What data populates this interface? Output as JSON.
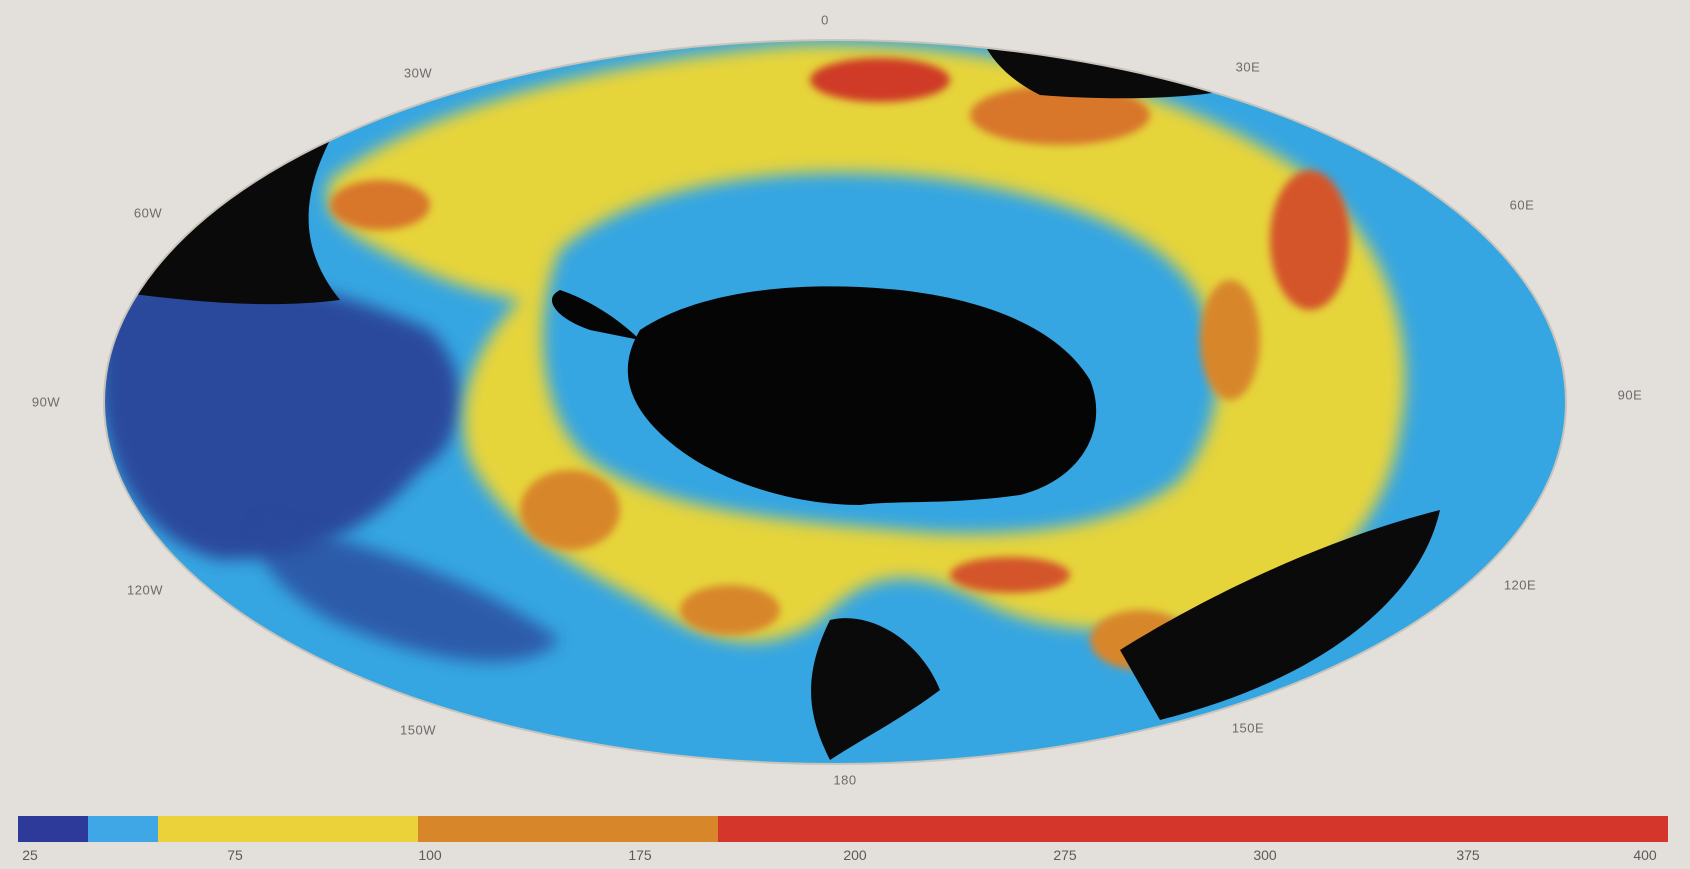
{
  "map": {
    "longitude_labels": [
      "0",
      "30E",
      "60E",
      "90E",
      "120E",
      "150E",
      "180",
      "150W",
      "120W",
      "90W",
      "60W",
      "30W"
    ]
  },
  "colorbar": {
    "ticks": [
      "25",
      "75",
      "100",
      "175",
      "200",
      "275",
      "300",
      "375",
      "400"
    ],
    "colors": [
      "#2e3a9a",
      "#3fa7e6",
      "#ecd23a",
      "#d8862a",
      "#d4362b"
    ]
  }
}
